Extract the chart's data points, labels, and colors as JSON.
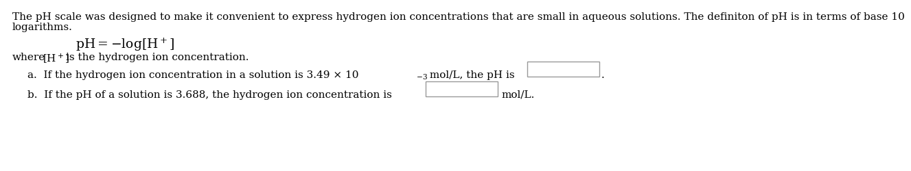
{
  "bg_color": "#ffffff",
  "text_color": "#000000",
  "para1": "The pH scale was designed to make it convenient to express hydrogen ion concentrations that are small in aqueous solutions. The definiton of pH is in terms of base 10",
  "para1_line2": "logarithms.",
  "where_text": "where ",
  "where_rest": " is the hydrogen ion concentration.",
  "part_a_pre": "a.  If the hydrogen ion concentration in a solution is 3.49 × 10",
  "part_a_exp": "-3",
  "part_a_post": " mol/L, the pH is",
  "period": ".",
  "part_b_pre": "b.  If the pH of a solution is 3.688, the hydrogen ion concentration is",
  "part_b_post": "mol/L.",
  "font_size_body": 11.0,
  "font_size_formula": 13.5
}
